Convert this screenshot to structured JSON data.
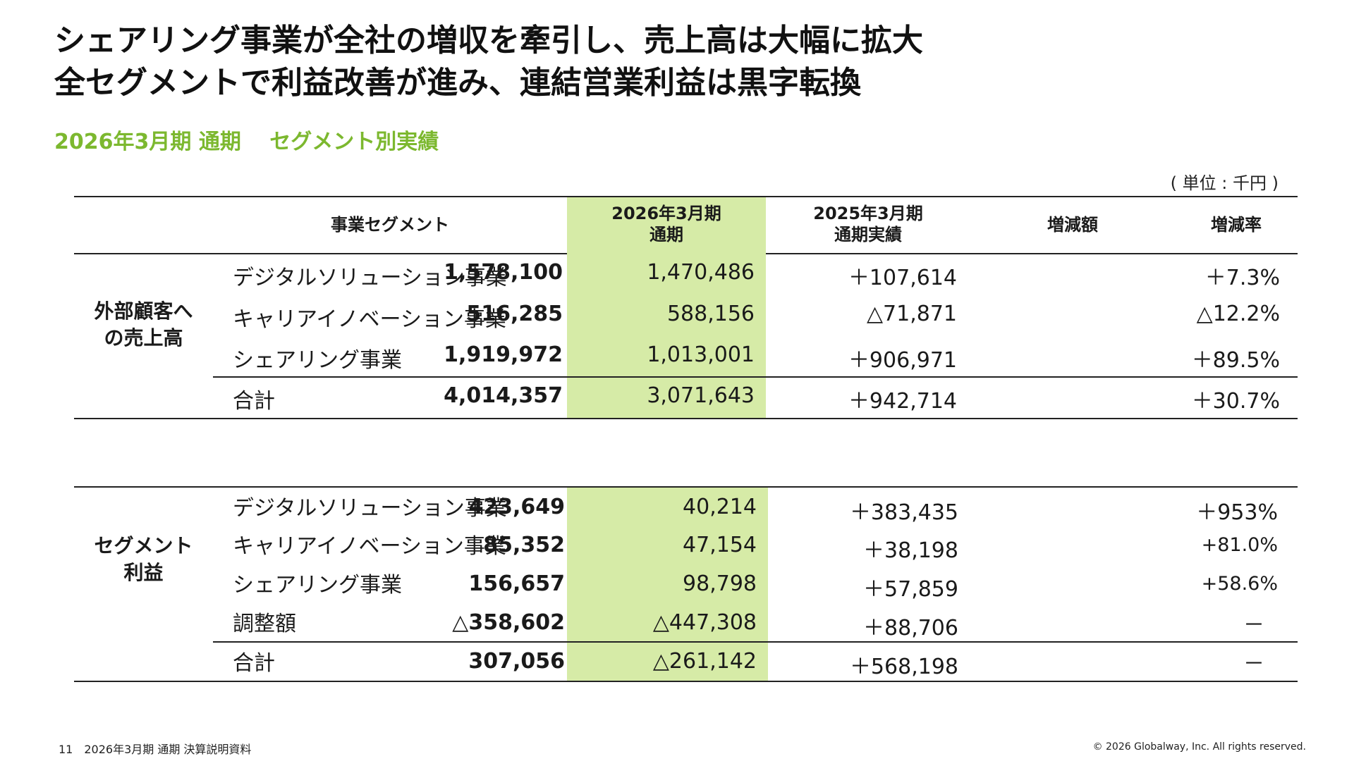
{
  "headline": {
    "line1": "シェアリング事業が全社の増収を牽引し、売上高は大幅に拡大",
    "line2": "全セグメントで利益改善が進み、連結営業利益は黒字転換"
  },
  "subtitle": "2026年3月期 通期　 セグメント別実績",
  "unit": "( 単位 : 千円 )",
  "header": {
    "segment": "事業セグメント",
    "current_line1": "2026年3月期",
    "current_line2": "通期",
    "previous_line1": "2025年3月期",
    "previous_line2": "通期実績",
    "diff": "増減額",
    "rate": "増減率"
  },
  "sales": {
    "group_label_line1": "外部顧客へ",
    "group_label_line2": "の売上高",
    "rows": [
      {
        "name": "デジタルソリューション事業",
        "current": "1,578,100",
        "previous": "1,470,486",
        "diff": "＋107,614",
        "rate": "＋7.3%"
      },
      {
        "name": "キャリアイノベーション事業",
        "current": "516,285",
        "previous": "588,156",
        "diff": "△71,871",
        "rate": "△12.2%"
      },
      {
        "name": "シェアリング事業",
        "current": "1,919,972",
        "previous": "1,013,001",
        "diff": "＋906,971",
        "rate": "＋89.5%"
      }
    ],
    "total": {
      "name": "合計",
      "current": "4,014,357",
      "previous": "3,071,643",
      "diff": "＋942,714",
      "rate": "＋30.7%"
    }
  },
  "profit": {
    "group_label_line1": "セグメント",
    "group_label_line2": "利益",
    "rows": [
      {
        "name": "デジタルソリューション事業",
        "current": "423,649",
        "previous": "40,214",
        "diff": "＋383,435",
        "rate": "＋953%"
      },
      {
        "name": "キャリアイノベーション事業",
        "current": "85,352",
        "previous": "47,154",
        "diff": "＋38,198",
        "rate": "+81.0%"
      },
      {
        "name": "シェアリング事業",
        "current": "156,657",
        "previous": "98,798",
        "diff": "＋57,859",
        "rate": "+58.6%"
      },
      {
        "name": "調整額",
        "current": "△358,602",
        "previous": "△447,308",
        "diff": "＋88,706",
        "rate": "－"
      }
    ],
    "total": {
      "name": "合計",
      "current": "307,056",
      "previous": "△261,142",
      "diff": "＋568,198",
      "rate": "－"
    }
  },
  "footer": {
    "left": "11　2026年3月期 通期 決算説明資料",
    "right": "© 2026 Globalway, Inc. All rights reserved."
  },
  "colors": {
    "accent_green": "#7cb82f",
    "highlight_column": "#d6eba7"
  }
}
